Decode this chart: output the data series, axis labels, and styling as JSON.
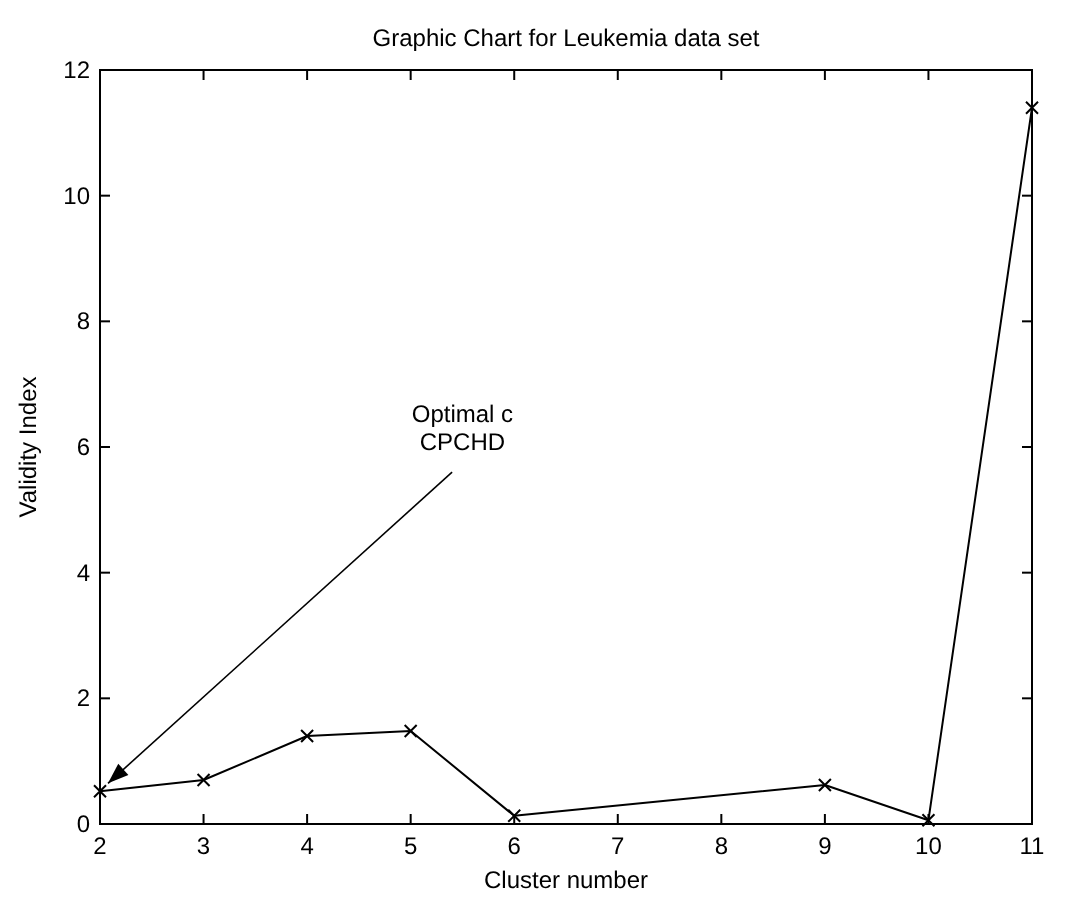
{
  "chart_data": {
    "type": "line",
    "title": "Graphic Chart for Leukemia data set",
    "xlabel": "Cluster number",
    "ylabel": "Validity Index",
    "x": [
      2,
      3,
      4,
      5,
      6,
      9,
      10,
      11
    ],
    "series": [
      {
        "color": "#000000",
        "values": [
          0.52,
          0.7,
          1.4,
          1.48,
          0.13,
          0.62,
          0.06,
          11.4
        ]
      }
    ],
    "xlim": [
      2,
      11
    ],
    "xticks": [
      2,
      3,
      4,
      5,
      6,
      7,
      8,
      9,
      10,
      11
    ],
    "ylim": [
      0,
      12
    ],
    "yticks": [
      0,
      2,
      4,
      6,
      8,
      10,
      12
    ],
    "grid": false,
    "marker": "cross",
    "line_style": "solid",
    "annotations": [
      {
        "text": "Optimal c\nCPCHD",
        "x": 2,
        "y": 0.52
      }
    ]
  }
}
